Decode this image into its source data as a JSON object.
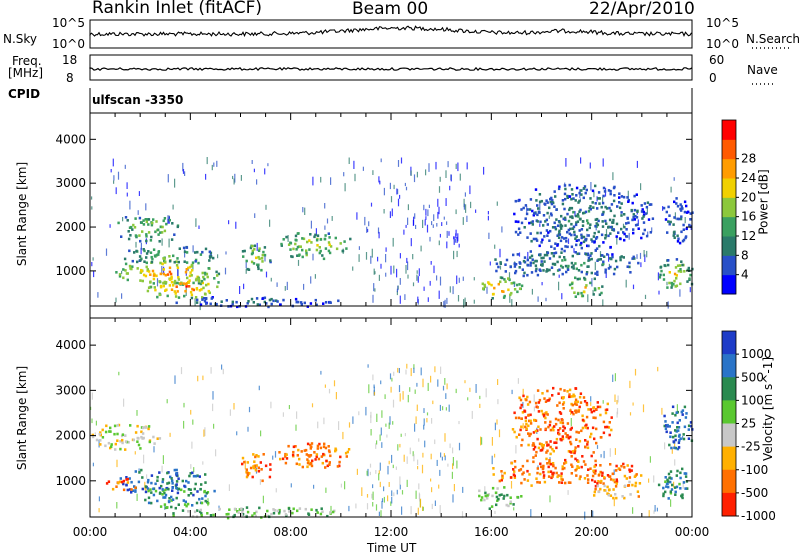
{
  "header": {
    "station": "Rankin Inlet (fitACF)",
    "beam": "Beam 00",
    "date": "22/Apr/2010"
  },
  "status_panels": {
    "nsky": {
      "label": "N.Sky",
      "ticks": [
        "10^5",
        "10^0"
      ],
      "right_label": "N.Search",
      "right_ticks": [
        "10^5",
        "10^0"
      ],
      "range": [
        0,
        5
      ]
    },
    "freq": {
      "label_lines": [
        "Freq.",
        "[MHz]"
      ],
      "ticks": [
        "18",
        "8"
      ],
      "right_label": "Nave",
      "right_ticks": [
        "60",
        "0"
      ],
      "range": [
        8,
        18
      ]
    },
    "cpid": {
      "label": "CPID",
      "value": "ulfscan  -3350"
    }
  },
  "chart_data": [
    {
      "type": "heatmap",
      "name": "power-panel",
      "ylabel": "Slant Range [km]",
      "xlabel": "",
      "y_ticks": [
        "1000",
        "2000",
        "3000",
        "4000"
      ],
      "ylim": [
        200,
        4600
      ],
      "xlim": [
        0,
        24
      ],
      "x_ticks": [
        "00:00",
        "04:00",
        "08:00",
        "12:00",
        "16:00",
        "20:00",
        "00:00"
      ],
      "colorbar": {
        "label": "Power [dB]",
        "ticks": [
          "4",
          "8",
          "12",
          "16",
          "20",
          "24",
          "28"
        ],
        "range": [
          0,
          32
        ],
        "colors": [
          "#0000ff",
          "#2850c8",
          "#2a7a6a",
          "#3aa060",
          "#8cc83c",
          "#f0d000",
          "#ff9c00",
          "#ff5a00",
          "#ff0000"
        ]
      },
      "blobs": [
        {
          "t0": 1.0,
          "t1": 3.6,
          "r0": 1700,
          "r1": 2300,
          "level": 18
        },
        {
          "t0": 1.0,
          "t1": 5.2,
          "r0": 700,
          "r1": 1300,
          "level": 26
        },
        {
          "t0": 2.2,
          "t1": 5.2,
          "r0": 400,
          "r1": 900,
          "level": 28
        },
        {
          "t0": 1.2,
          "t1": 5.0,
          "r0": 1200,
          "r1": 1600,
          "level": 16
        },
        {
          "t0": 6.0,
          "t1": 7.2,
          "r0": 1000,
          "r1": 1700,
          "level": 20
        },
        {
          "t0": 7.4,
          "t1": 10.4,
          "r0": 1300,
          "r1": 1900,
          "level": 20
        },
        {
          "t0": 15.4,
          "t1": 17.2,
          "r0": 400,
          "r1": 900,
          "level": 26
        },
        {
          "t0": 16.0,
          "t1": 22.0,
          "r0": 900,
          "r1": 1500,
          "level": 12
        },
        {
          "t0": 16.8,
          "t1": 22.4,
          "r0": 1500,
          "r1": 3000,
          "level": 10
        },
        {
          "t0": 18.8,
          "t1": 20.4,
          "r0": 400,
          "r1": 900,
          "level": 22
        },
        {
          "t0": 22.6,
          "t1": 24.0,
          "r0": 600,
          "r1": 1300,
          "level": 20
        },
        {
          "t0": 22.8,
          "t1": 24.0,
          "r0": 1600,
          "r1": 2700,
          "level": 8
        },
        {
          "t0": 3.0,
          "t1": 10.0,
          "r0": 200,
          "r1": 450,
          "level": 8
        }
      ]
    },
    {
      "type": "heatmap",
      "name": "velocity-panel",
      "ylabel": "Slant Range [km]",
      "xlabel": "Time UT",
      "y_ticks": [
        "1000",
        "2000",
        "3000",
        "4000"
      ],
      "ylim": [
        200,
        4600
      ],
      "xlim": [
        0,
        24
      ],
      "x_ticks": [
        "00:00",
        "04:00",
        "08:00",
        "12:00",
        "16:00",
        "20:00",
        "00:00"
      ],
      "colorbar": {
        "label": "Velocity [m s^-1]",
        "ticks": [
          "1000",
          "500",
          "100",
          "25",
          "-25",
          "-100",
          "-500",
          "-1000"
        ],
        "colors": [
          "#1e3cc8",
          "#2a74c8",
          "#2a8a50",
          "#5ac830",
          "#c8c8c8",
          "#ffb000",
          "#ff7000",
          "#ff2000"
        ]
      },
      "blobs": [
        {
          "t0": 0.0,
          "t1": 2.8,
          "r0": 1700,
          "r1": 2300,
          "cat": 4
        },
        {
          "t0": 1.0,
          "t1": 4.8,
          "r0": 700,
          "r1": 1300,
          "cat": 1
        },
        {
          "t0": 2.0,
          "t1": 5.0,
          "r0": 400,
          "r1": 900,
          "cat": 2
        },
        {
          "t0": 0.6,
          "t1": 2.0,
          "r0": 800,
          "r1": 1100,
          "cat": 6
        },
        {
          "t0": 6.0,
          "t1": 7.2,
          "r0": 1000,
          "r1": 1700,
          "cat": 6
        },
        {
          "t0": 7.4,
          "t1": 10.4,
          "r0": 1300,
          "r1": 1900,
          "cat": 6
        },
        {
          "t0": 15.4,
          "t1": 17.2,
          "r0": 400,
          "r1": 900,
          "cat": 3
        },
        {
          "t0": 16.0,
          "t1": 22.0,
          "r0": 900,
          "r1": 1500,
          "cat": 6
        },
        {
          "t0": 16.8,
          "t1": 20.8,
          "r0": 1500,
          "r1": 3100,
          "cat": 6
        },
        {
          "t0": 20.0,
          "t1": 22.0,
          "r0": 600,
          "r1": 1100,
          "cat": 5
        },
        {
          "t0": 22.6,
          "t1": 24.0,
          "r0": 600,
          "r1": 1300,
          "cat": 2
        },
        {
          "t0": 22.8,
          "t1": 24.0,
          "r0": 1700,
          "r1": 2700,
          "cat": 1
        },
        {
          "t0": 3.0,
          "t1": 10.0,
          "r0": 200,
          "r1": 450,
          "cat": 3
        }
      ]
    }
  ]
}
